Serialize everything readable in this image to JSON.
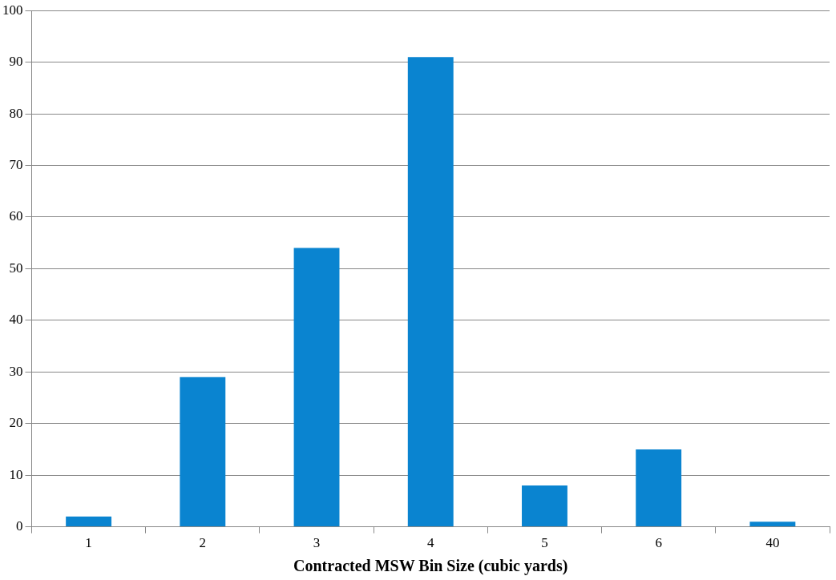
{
  "chart_data": {
    "type": "bar",
    "xlabel": "Contracted MSW Bin Size (cubic yards)",
    "categories": [
      "1",
      "2",
      "3",
      "4",
      "5",
      "6",
      "40"
    ],
    "values": [
      2,
      29,
      54,
      91,
      8,
      15,
      1
    ],
    "color": "#0a84d0",
    "ylim": [
      0,
      100
    ],
    "yticks": [
      0,
      10,
      20,
      30,
      40,
      50,
      60,
      70,
      80,
      90,
      100
    ],
    "grid": "y",
    "legend": false
  }
}
